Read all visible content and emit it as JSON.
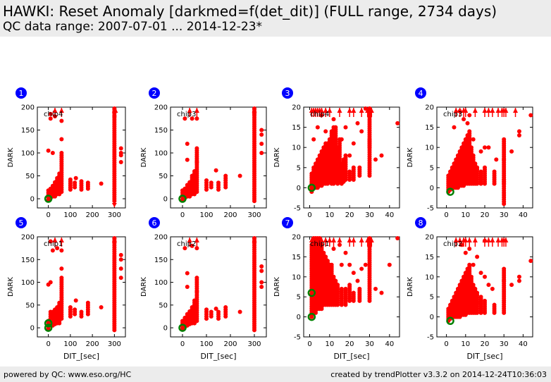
{
  "header": {
    "title": "HAWKI: Reset Anomaly [darkmed=f(det_dit)] (FULL range, 2734 days)",
    "subtitle": "QC data range: 2007-07-01 ... 2014-12-23*"
  },
  "footer": {
    "left": "powered by QC: www.eso.org/HC",
    "right": "created by trendPlotter v3.3.2 on 2014-12-24T10:36:03"
  },
  "colors": {
    "points": "#ff0000",
    "latest": "#008000",
    "badge": "#0000ff",
    "header_bg": "#ececec"
  },
  "chart_data": [
    {
      "type": "scatter",
      "panel_number": "1",
      "label": "chip4",
      "ylabel": "DARK",
      "xlabel": "",
      "xlim": [
        -50,
        350
      ],
      "ylim": [
        -20,
        200
      ],
      "xticks": [
        "0",
        "100",
        "200",
        "300"
      ],
      "yticks": [
        "0",
        "50",
        "100",
        "150",
        "200"
      ],
      "columns": [
        [
          0,
          -2,
          18
        ],
        [
          10,
          2,
          22
        ],
        [
          20,
          5,
          28
        ],
        [
          30,
          5,
          36
        ],
        [
          40,
          10,
          45
        ],
        [
          50,
          10,
          55
        ],
        [
          60,
          15,
          100
        ],
        [
          100,
          20,
          42
        ],
        [
          120,
          25,
          35
        ],
        [
          150,
          20,
          38
        ],
        [
          180,
          22,
          35
        ],
        [
          300,
          -5,
          200
        ]
      ],
      "points": [
        [
          0,
          105
        ],
        [
          10,
          175
        ],
        [
          10,
          185
        ],
        [
          20,
          100
        ],
        [
          30,
          180
        ],
        [
          60,
          170
        ],
        [
          60,
          130
        ],
        [
          125,
          45
        ],
        [
          240,
          33
        ],
        [
          330,
          110
        ],
        [
          330,
          100
        ],
        [
          330,
          95
        ],
        [
          330,
          80
        ],
        [
          300,
          190
        ],
        [
          300,
          180
        ]
      ],
      "outliers_above_x": [
        30,
        60,
        300,
        305
      ],
      "outliers_below_x": [
        300
      ],
      "latest": [
        [
          0,
          0
        ]
      ]
    },
    {
      "type": "scatter",
      "panel_number": "2",
      "label": "chip3",
      "ylabel": "DARK",
      "xlabel": "",
      "xlim": [
        -50,
        350
      ],
      "ylim": [
        -20,
        200
      ],
      "xticks": [
        "0",
        "100",
        "200",
        "300"
      ],
      "yticks": [
        "0",
        "50",
        "100",
        "150",
        "200"
      ],
      "columns": [
        [
          0,
          -2,
          18
        ],
        [
          10,
          2,
          22
        ],
        [
          20,
          5,
          30
        ],
        [
          30,
          5,
          36
        ],
        [
          40,
          10,
          50
        ],
        [
          50,
          10,
          60
        ],
        [
          60,
          15,
          110
        ],
        [
          100,
          20,
          40
        ],
        [
          120,
          25,
          35
        ],
        [
          150,
          20,
          35
        ],
        [
          180,
          25,
          50
        ],
        [
          300,
          -5,
          200
        ]
      ],
      "points": [
        [
          10,
          175
        ],
        [
          20,
          120
        ],
        [
          20,
          85
        ],
        [
          40,
          175
        ],
        [
          60,
          175
        ],
        [
          60,
          80
        ],
        [
          140,
          62
        ],
        [
          240,
          50
        ],
        [
          330,
          140
        ],
        [
          330,
          150
        ],
        [
          330,
          120
        ],
        [
          330,
          100
        ],
        [
          300,
          185
        ],
        [
          300,
          190
        ]
      ],
      "outliers_above_x": [
        30,
        60,
        300
      ],
      "outliers_below_x": [],
      "latest": [
        [
          0,
          0
        ]
      ]
    },
    {
      "type": "scatter",
      "panel_number": "3",
      "label": "chip4",
      "ylabel": "DARK",
      "xlabel": "",
      "xlim": [
        -3,
        45
      ],
      "ylim": [
        -5,
        20
      ],
      "xticks": [
        "0",
        "10",
        "20",
        "30",
        "40"
      ],
      "yticks": [
        "-5",
        "0",
        "5",
        "10",
        "15",
        "20"
      ],
      "columns": [
        [
          1,
          -1,
          3.5
        ],
        [
          2,
          0,
          5
        ],
        [
          3,
          0,
          6
        ],
        [
          4,
          0,
          7
        ],
        [
          5,
          0.5,
          8
        ],
        [
          6,
          0.5,
          9
        ],
        [
          7,
          1,
          10
        ],
        [
          8,
          1,
          11
        ],
        [
          9,
          1,
          11
        ],
        [
          10,
          1.5,
          12
        ],
        [
          11,
          1,
          14
        ],
        [
          12,
          1,
          15
        ],
        [
          13,
          1.5,
          15
        ],
        [
          14,
          1,
          10
        ],
        [
          15,
          1.5,
          12
        ],
        [
          16,
          1,
          6
        ],
        [
          17,
          1.5,
          7
        ],
        [
          18,
          2,
          8
        ],
        [
          20,
          2,
          4
        ],
        [
          22,
          2,
          5
        ],
        [
          25,
          3,
          5
        ],
        [
          30,
          3,
          12
        ],
        [
          30,
          10,
          20
        ]
      ],
      "points": [
        [
          8,
          14
        ],
        [
          16,
          12
        ],
        [
          18,
          15
        ],
        [
          20,
          8
        ],
        [
          22,
          11
        ],
        [
          24,
          16
        ],
        [
          26,
          14
        ],
        [
          28,
          20
        ],
        [
          30,
          20
        ],
        [
          33,
          7
        ],
        [
          36,
          8
        ],
        [
          44,
          16
        ],
        [
          12,
          17
        ],
        [
          6,
          18
        ],
        [
          4,
          15
        ],
        [
          2,
          12
        ]
      ],
      "outliers_above_x": [
        1,
        2,
        3,
        4,
        5,
        6,
        8,
        10,
        15,
        20,
        22,
        26,
        29,
        30,
        31
      ],
      "outliers_below_x": [],
      "latest": [
        [
          1,
          0
        ]
      ]
    },
    {
      "type": "scatter",
      "panel_number": "4",
      "label": "chip3",
      "ylabel": "DARK",
      "xlabel": "",
      "xlim": [
        -5,
        45
      ],
      "ylim": [
        -5,
        20
      ],
      "xticks": [
        "0",
        "10",
        "20",
        "30",
        "40"
      ],
      "yticks": [
        "-5",
        "0",
        "5",
        "10",
        "15",
        "20"
      ],
      "columns": [
        [
          1,
          -1,
          3
        ],
        [
          2,
          -0.5,
          4
        ],
        [
          3,
          0,
          5
        ],
        [
          4,
          0,
          6
        ],
        [
          5,
          0,
          7
        ],
        [
          6,
          0,
          8
        ],
        [
          7,
          0.5,
          9
        ],
        [
          8,
          0.5,
          10
        ],
        [
          9,
          0.5,
          11
        ],
        [
          10,
          1,
          12
        ],
        [
          11,
          1,
          13
        ],
        [
          12,
          1,
          14
        ],
        [
          13,
          1,
          10
        ],
        [
          14,
          1,
          8
        ],
        [
          15,
          1,
          6
        ],
        [
          16,
          1,
          5
        ],
        [
          18,
          1,
          4
        ],
        [
          20,
          1,
          5
        ],
        [
          25,
          1,
          4
        ],
        [
          30,
          1,
          12
        ],
        [
          30,
          -4,
          2
        ]
      ],
      "points": [
        [
          9,
          17
        ],
        [
          11,
          16
        ],
        [
          12,
          18
        ],
        [
          14,
          12
        ],
        [
          18,
          9
        ],
        [
          20,
          10
        ],
        [
          22,
          10
        ],
        [
          26,
          7
        ],
        [
          30,
          7
        ],
        [
          34,
          9
        ],
        [
          38,
          13
        ],
        [
          38,
          14
        ],
        [
          44,
          18
        ],
        [
          7,
          19
        ],
        [
          4,
          15
        ]
      ],
      "outliers_above_x": [
        5,
        7,
        9,
        10,
        15,
        20,
        22,
        24,
        27,
        29,
        30,
        31,
        36
      ],
      "outliers_below_x": [],
      "latest": [
        [
          2,
          -1
        ]
      ]
    },
    {
      "type": "scatter",
      "panel_number": "5",
      "label": "chip1",
      "ylabel": "DARK",
      "xlabel": "DIT_[sec]",
      "xlim": [
        -50,
        350
      ],
      "ylim": [
        -20,
        200
      ],
      "xticks": [
        "0",
        "100",
        "200",
        "300"
      ],
      "yticks": [
        "0",
        "50",
        "100",
        "150",
        "200"
      ],
      "columns": [
        [
          0,
          -2,
          15
        ],
        [
          10,
          5,
          35
        ],
        [
          20,
          5,
          35
        ],
        [
          30,
          8,
          40
        ],
        [
          40,
          10,
          45
        ],
        [
          50,
          10,
          55
        ],
        [
          60,
          20,
          110
        ],
        [
          100,
          25,
          45
        ],
        [
          120,
          30,
          40
        ],
        [
          150,
          25,
          35
        ],
        [
          180,
          30,
          55
        ],
        [
          300,
          -5,
          200
        ]
      ],
      "points": [
        [
          0,
          95
        ],
        [
          10,
          100
        ],
        [
          10,
          190
        ],
        [
          20,
          170
        ],
        [
          40,
          175
        ],
        [
          60,
          170
        ],
        [
          60,
          130
        ],
        [
          125,
          60
        ],
        [
          240,
          45
        ],
        [
          330,
          160
        ],
        [
          330,
          150
        ],
        [
          330,
          130
        ],
        [
          330,
          110
        ],
        [
          300,
          190
        ]
      ],
      "outliers_above_x": [
        30,
        60,
        300
      ],
      "outliers_below_x": [],
      "latest": [
        [
          0,
          0
        ],
        [
          0,
          10
        ]
      ]
    },
    {
      "type": "scatter",
      "panel_number": "6",
      "label": "chip2",
      "ylabel": "DARK",
      "xlabel": "DIT_[sec]",
      "xlim": [
        -50,
        350
      ],
      "ylim": [
        -20,
        200
      ],
      "xticks": [
        "0",
        "100",
        "200",
        "300"
      ],
      "yticks": [
        "0",
        "50",
        "100",
        "150",
        "200"
      ],
      "columns": [
        [
          0,
          -2,
          15
        ],
        [
          10,
          2,
          22
        ],
        [
          20,
          5,
          30
        ],
        [
          30,
          8,
          36
        ],
        [
          40,
          10,
          45
        ],
        [
          50,
          10,
          60
        ],
        [
          60,
          15,
          110
        ],
        [
          100,
          20,
          40
        ],
        [
          120,
          25,
          35
        ],
        [
          150,
          20,
          35
        ],
        [
          180,
          25,
          45
        ],
        [
          300,
          -5,
          200
        ]
      ],
      "points": [
        [
          10,
          175
        ],
        [
          20,
          120
        ],
        [
          20,
          90
        ],
        [
          40,
          180
        ],
        [
          60,
          175
        ],
        [
          60,
          80
        ],
        [
          140,
          42
        ],
        [
          240,
          35
        ],
        [
          330,
          135
        ],
        [
          330,
          125
        ],
        [
          330,
          100
        ],
        [
          330,
          90
        ],
        [
          300,
          190
        ]
      ],
      "outliers_above_x": [
        30,
        60,
        300
      ],
      "outliers_below_x": [],
      "latest": [
        [
          0,
          0
        ]
      ]
    },
    {
      "type": "scatter",
      "panel_number": "7",
      "label": "chip1",
      "ylabel": "DARK",
      "xlabel": "DIT_[sec]",
      "xlim": [
        -3,
        45
      ],
      "ylim": [
        -5,
        20
      ],
      "xticks": [
        "0",
        "10",
        "20",
        "30",
        "40"
      ],
      "yticks": [
        "-5",
        "0",
        "5",
        "10",
        "15",
        "20"
      ],
      "columns": [
        [
          1,
          0,
          18
        ],
        [
          2,
          1,
          20
        ],
        [
          3,
          1,
          20
        ],
        [
          4,
          2,
          20
        ],
        [
          5,
          2,
          20
        ],
        [
          6,
          2,
          18
        ],
        [
          7,
          3,
          16
        ],
        [
          8,
          3,
          15
        ],
        [
          9,
          3,
          14
        ],
        [
          10,
          3,
          13
        ],
        [
          11,
          3,
          13
        ],
        [
          12,
          3,
          10
        ],
        [
          13,
          3,
          9
        ],
        [
          14,
          3,
          8
        ],
        [
          16,
          3,
          7
        ],
        [
          18,
          3,
          7
        ],
        [
          20,
          4,
          8
        ],
        [
          22,
          4,
          6
        ],
        [
          25,
          4,
          7
        ],
        [
          30,
          4,
          20
        ]
      ],
      "points": [
        [
          12,
          17
        ],
        [
          16,
          13
        ],
        [
          18,
          16
        ],
        [
          20,
          13
        ],
        [
          22,
          11
        ],
        [
          24,
          9
        ],
        [
          26,
          12
        ],
        [
          28,
          13
        ],
        [
          33,
          7
        ],
        [
          36,
          6
        ],
        [
          40,
          13
        ],
        [
          44,
          20
        ],
        [
          15,
          18
        ]
      ],
      "outliers_above_x": [
        1,
        2,
        3,
        4,
        6,
        8,
        10,
        12,
        15,
        20,
        22,
        26,
        29,
        30,
        31
      ],
      "outliers_below_x": [],
      "latest": [
        [
          1,
          0
        ],
        [
          1,
          6
        ]
      ]
    },
    {
      "type": "scatter",
      "panel_number": "8",
      "label": "chip2",
      "ylabel": "DARK",
      "xlabel": "DIT_[sec]",
      "xlim": [
        -5,
        45
      ],
      "ylim": [
        -5,
        20
      ],
      "xticks": [
        "0",
        "10",
        "20",
        "30",
        "40"
      ],
      "yticks": [
        "-5",
        "0",
        "5",
        "10",
        "15",
        "20"
      ],
      "columns": [
        [
          1,
          -1,
          2
        ],
        [
          2,
          -0.5,
          3
        ],
        [
          3,
          0,
          4
        ],
        [
          4,
          0,
          5
        ],
        [
          5,
          0,
          6
        ],
        [
          6,
          0,
          7
        ],
        [
          7,
          0,
          8
        ],
        [
          8,
          0.5,
          9
        ],
        [
          9,
          0.5,
          10
        ],
        [
          10,
          0.5,
          11
        ],
        [
          11,
          1,
          12
        ],
        [
          12,
          1,
          13
        ],
        [
          13,
          1,
          10
        ],
        [
          14,
          1,
          8
        ],
        [
          15,
          1,
          7
        ],
        [
          16,
          1,
          6
        ],
        [
          18,
          1,
          5
        ],
        [
          20,
          1,
          4
        ],
        [
          25,
          1,
          3
        ],
        [
          30,
          1,
          12
        ]
      ],
      "points": [
        [
          10,
          16
        ],
        [
          12,
          17
        ],
        [
          14,
          13
        ],
        [
          16,
          15
        ],
        [
          18,
          11
        ],
        [
          20,
          10
        ],
        [
          22,
          8
        ],
        [
          24,
          7
        ],
        [
          30,
          9
        ],
        [
          34,
          8
        ],
        [
          38,
          9
        ],
        [
          38,
          10
        ],
        [
          44,
          14
        ],
        [
          20,
          19
        ],
        [
          8,
          18
        ]
      ],
      "outliers_above_x": [
        5,
        7,
        9,
        10,
        12,
        15,
        20,
        22,
        24,
        27,
        29,
        30,
        31
      ],
      "outliers_below_x": [],
      "latest": [
        [
          2,
          -1
        ]
      ]
    }
  ]
}
